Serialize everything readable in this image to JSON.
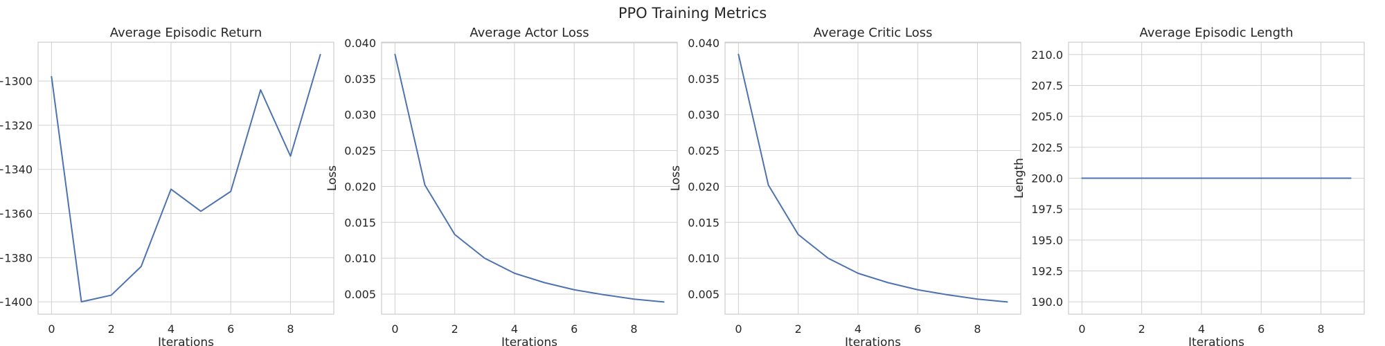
{
  "figure": {
    "suptitle": "PPO Training Metrics"
  },
  "colors": {
    "line": "#4c72b0",
    "grid": "#d0d0d0",
    "frame": "#cccccc",
    "text": "#262626"
  },
  "chart_data": [
    {
      "type": "line",
      "title": "Average Episodic Return",
      "xlabel": "Iterations",
      "ylabel": "",
      "x": [
        0,
        1,
        2,
        3,
        4,
        5,
        6,
        7,
        8,
        9
      ],
      "series": [
        {
          "values": [
            -1298,
            -1400,
            -1397,
            -1384,
            -1349,
            -1359,
            -1350,
            -1304,
            -1334,
            -1288
          ]
        }
      ],
      "xlim": [
        -0.45,
        9.45
      ],
      "ylim": [
        -1405.6,
        -1282.4
      ],
      "xticks": [
        0,
        2,
        4,
        6,
        8
      ],
      "yticks": [
        -1400,
        -1380,
        -1360,
        -1340,
        -1320,
        -1300
      ],
      "ytick_decimals": 0,
      "grid": true
    },
    {
      "type": "line",
      "title": "Average Actor Loss",
      "xlabel": "Iterations",
      "ylabel": "Loss",
      "x": [
        0,
        1,
        2,
        3,
        4,
        5,
        6,
        7,
        8,
        9
      ],
      "series": [
        {
          "values": [
            0.0384,
            0.0202,
            0.0133,
            0.01,
            0.0079,
            0.0066,
            0.0056,
            0.0049,
            0.0043,
            0.0039
          ]
        }
      ],
      "xlim": [
        -0.45,
        9.45
      ],
      "ylim": [
        0.0022,
        0.0401
      ],
      "xticks": [
        0,
        2,
        4,
        6,
        8
      ],
      "yticks": [
        0.005,
        0.01,
        0.015,
        0.02,
        0.025,
        0.03,
        0.035,
        0.04
      ],
      "ytick_decimals": 3,
      "grid": true
    },
    {
      "type": "line",
      "title": "Average Critic Loss",
      "xlabel": "Iterations",
      "ylabel": "Loss",
      "x": [
        0,
        1,
        2,
        3,
        4,
        5,
        6,
        7,
        8,
        9
      ],
      "series": [
        {
          "values": [
            0.0384,
            0.0202,
            0.0133,
            0.01,
            0.0079,
            0.0066,
            0.0056,
            0.0049,
            0.0043,
            0.0039
          ]
        }
      ],
      "xlim": [
        -0.45,
        9.45
      ],
      "ylim": [
        0.0022,
        0.0401
      ],
      "xticks": [
        0,
        2,
        4,
        6,
        8
      ],
      "yticks": [
        0.005,
        0.01,
        0.015,
        0.02,
        0.025,
        0.03,
        0.035,
        0.04
      ],
      "ytick_decimals": 3,
      "grid": true
    },
    {
      "type": "line",
      "title": "Average Episodic Length",
      "xlabel": "Iterations",
      "ylabel": "Length",
      "x": [
        0,
        1,
        2,
        3,
        4,
        5,
        6,
        7,
        8,
        9
      ],
      "series": [
        {
          "values": [
            200,
            200,
            200,
            200,
            200,
            200,
            200,
            200,
            200,
            200
          ]
        }
      ],
      "xlim": [
        -0.45,
        9.45
      ],
      "ylim": [
        189.0,
        211.0
      ],
      "xticks": [
        0,
        2,
        4,
        6,
        8
      ],
      "yticks": [
        190.0,
        192.5,
        195.0,
        197.5,
        200.0,
        202.5,
        205.0,
        207.5,
        210.0
      ],
      "ytick_decimals": 1,
      "grid": true
    }
  ]
}
